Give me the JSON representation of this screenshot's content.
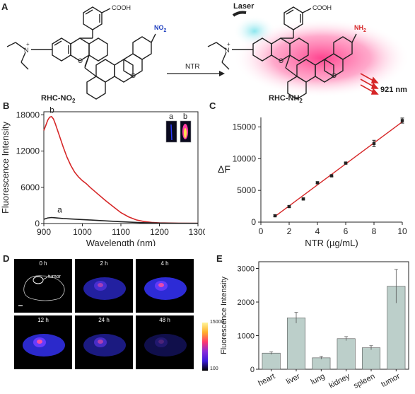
{
  "panels": {
    "A": {
      "label": "A",
      "reactant": "RHC-NO",
      "reactant_sub": "2",
      "product": "RHC-NH",
      "product_sub": "2",
      "arrow_label": "NTR",
      "laser_label": "Laser",
      "emission_label": "921 nm",
      "group_cooh": "COOH",
      "group_no2": "NO",
      "group_no2_sub": "2",
      "group_nh2": "NH",
      "group_nh2_sub": "2",
      "atom_n": "N",
      "atom_plus": "+",
      "atom_o": "O"
    },
    "B": {
      "label": "B"
    },
    "C": {
      "label": "C"
    },
    "D": {
      "label": "D"
    },
    "E": {
      "label": "E"
    }
  },
  "chart_data": [
    {
      "panel": "B",
      "type": "line",
      "xlabel": "Wavelength (nm)",
      "ylabel": "Fluorescence Intensity",
      "xlim": [
        900,
        1300
      ],
      "ylim": [
        0,
        18500
      ],
      "xticks": [
        900,
        1000,
        1100,
        1200,
        1300
      ],
      "yticks": [
        0,
        6000,
        12000,
        18000
      ],
      "series": [
        {
          "name": "b",
          "color": "#d62728",
          "x": [
            900,
            905,
            910,
            915,
            920,
            925,
            930,
            940,
            950,
            960,
            970,
            980,
            990,
            1000,
            1010,
            1020,
            1040,
            1060,
            1080,
            1100,
            1120,
            1140,
            1160,
            1180,
            1200,
            1250,
            1300
          ],
          "y": [
            15400,
            16200,
            17100,
            17600,
            17700,
            17300,
            16500,
            14600,
            12700,
            11000,
            9600,
            8500,
            7700,
            7100,
            6600,
            6000,
            4900,
            3800,
            2800,
            1800,
            1100,
            600,
            330,
            190,
            110,
            60,
            40
          ]
        },
        {
          "name": "a",
          "color": "#222222",
          "x": [
            900,
            910,
            920,
            930,
            950,
            1000,
            1050,
            1100,
            1150,
            1200,
            1250,
            1300
          ],
          "y": [
            700,
            920,
            1000,
            950,
            830,
            660,
            480,
            300,
            150,
            70,
            40,
            30
          ]
        }
      ],
      "inset_labels": [
        "a",
        "b"
      ]
    },
    {
      "panel": "C",
      "type": "scatter",
      "xlabel": "NTR (µg/mL)",
      "ylabel": "ΔF",
      "xlim": [
        0,
        10
      ],
      "ylim": [
        0,
        16500
      ],
      "xticks": [
        0,
        2,
        4,
        6,
        8,
        10
      ],
      "yticks": [
        0,
        5000,
        10000,
        15000
      ],
      "points": [
        {
          "x": 1,
          "y": 1000,
          "err": 150
        },
        {
          "x": 2,
          "y": 2450,
          "err": 150
        },
        {
          "x": 3,
          "y": 3650,
          "err": 150
        },
        {
          "x": 4,
          "y": 6200,
          "err": 150
        },
        {
          "x": 5,
          "y": 7300,
          "err": 150
        },
        {
          "x": 6,
          "y": 9300,
          "err": 150
        },
        {
          "x": 8,
          "y": 12400,
          "err": 500
        },
        {
          "x": 10,
          "y": 16000,
          "err": 400
        }
      ],
      "fit": {
        "x": [
          1,
          10
        ],
        "y": [
          900,
          15800
        ],
        "color": "#d62728"
      },
      "point_color": "#222222"
    },
    {
      "panel": "E",
      "type": "bar",
      "ylabel": "Fluorescence Intensity",
      "ylim": [
        0,
        3200
      ],
      "yticks": [
        0,
        1000,
        2000,
        3000
      ],
      "categories": [
        "heart",
        "liver",
        "lung",
        "kidney",
        "spleen",
        "tumor"
      ],
      "values": [
        480,
        1530,
        340,
        910,
        640,
        2470
      ],
      "errors": [
        40,
        160,
        40,
        60,
        60,
        500
      ],
      "bar_color": "#bccfca"
    }
  ],
  "imaging": {
    "time_labels": [
      "0 h",
      "2 h",
      "4 h",
      "12 h",
      "24 h",
      "48 h"
    ],
    "tumor_label": "tumor",
    "scale_max": "15000",
    "scale_min": "100"
  }
}
